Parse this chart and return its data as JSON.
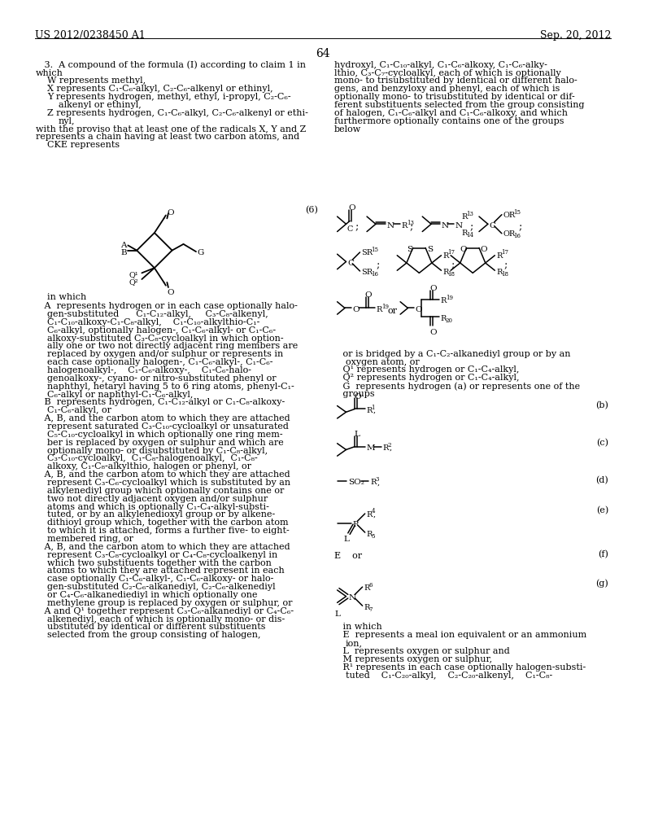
{
  "bg_color": "#ffffff",
  "text_color": "#000000",
  "header_left": "US 2012/0238450 A1",
  "header_right": "Sep. 20, 2012",
  "page_number": "64"
}
